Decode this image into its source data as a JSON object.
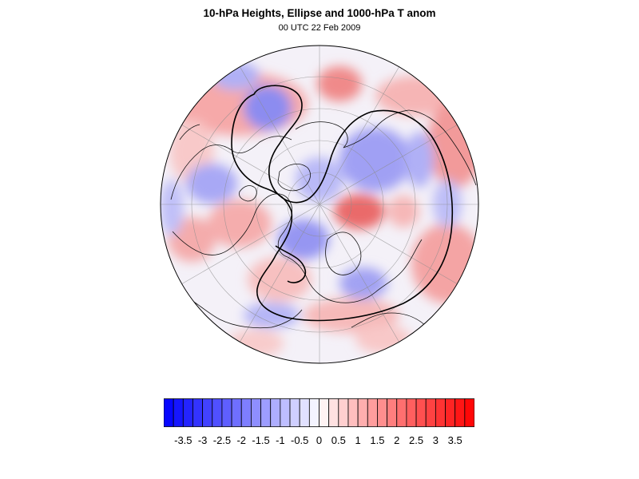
{
  "title": "10-hPa Heights, Ellipse and 1000-hPa T anom",
  "subtitle": "00 UTC 22 Feb 2009",
  "colorbar": {
    "labels": [
      "-3.5",
      "-3",
      "-2.5",
      "-2",
      "-1.5",
      "-1",
      "-0.5",
      "0",
      "0.5",
      "1",
      "1.5",
      "2",
      "2.5",
      "3",
      "3.5"
    ],
    "min": -4,
    "max": 4,
    "step": 0.25,
    "colors": {
      "negative_end": "#0000ff",
      "neutral": "#ffffff",
      "positive_end": "#ff0000",
      "border": "#000000"
    }
  },
  "map": {
    "projection": "polar stereographic, North Pole centered",
    "overlay": "10-hPa height contours with fitted ellipse",
    "shading": "1000-hPa temperature anomaly",
    "colors": {
      "coastline": "#000000",
      "graticule": "#8c8c8c",
      "contour": "#000000"
    }
  }
}
